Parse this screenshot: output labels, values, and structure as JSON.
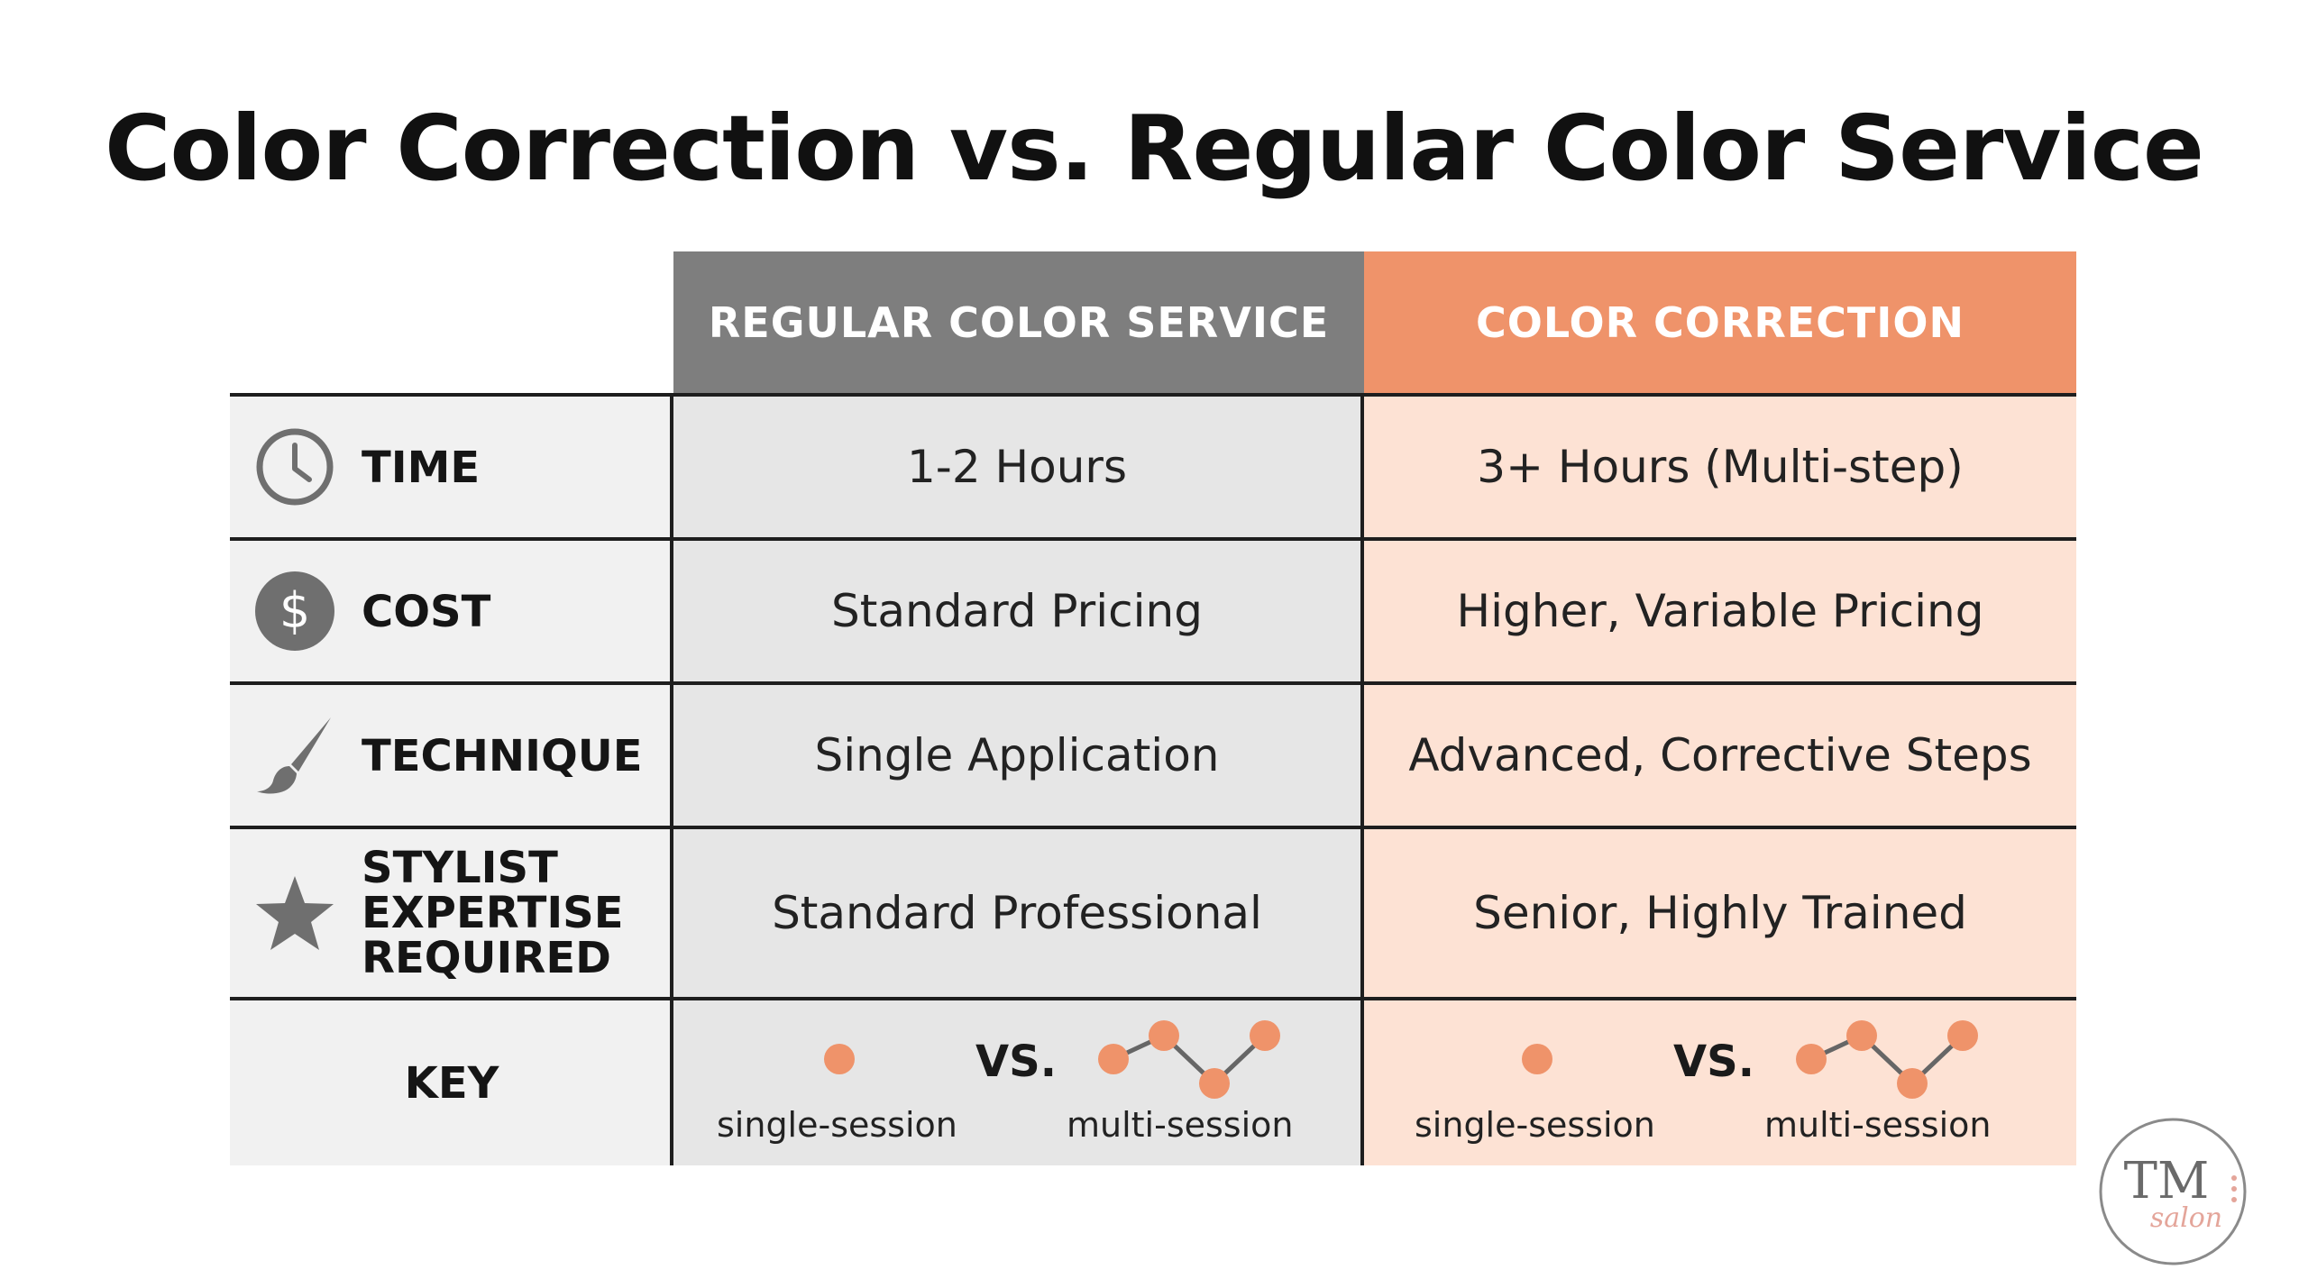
{
  "title": "Color Correction vs. Regular Color Service",
  "columns": {
    "regular": "REGULAR COLOR SERVICE",
    "correction": "COLOR CORRECTION"
  },
  "rows": [
    {
      "icon": "clock-icon",
      "label": "TIME",
      "regular": "1-2 Hours",
      "correction": "3+ Hours (Multi-step)"
    },
    {
      "icon": "dollar-icon",
      "label": "COST",
      "regular": "Standard Pricing",
      "correction": "Higher, Variable Pricing"
    },
    {
      "icon": "paintbrush-icon",
      "label": "TECHNIQUE",
      "regular": "Single Application",
      "correction": "Advanced, Corrective Steps"
    },
    {
      "icon": "star-icon",
      "label_lines": [
        "STYLIST",
        "EXPERTISE",
        "REQUIRED"
      ],
      "regular": "Standard Professional",
      "correction": "Senior, Highly Trained"
    }
  ],
  "key": {
    "label": "KEY",
    "single": "single-session",
    "vs": "VS.",
    "multi": "multi-session"
  },
  "logo": {
    "text": "TM",
    "subtext": "salon"
  },
  "colors": {
    "regular_header": "#7e7e7e",
    "correction_header": "#ef936a",
    "regular_cell": "#e6e6e6",
    "correction_cell": "#fde2d4",
    "label_cell": "#f1f1f1",
    "dot": "#ef936a",
    "icon": "#6f6f6f"
  }
}
